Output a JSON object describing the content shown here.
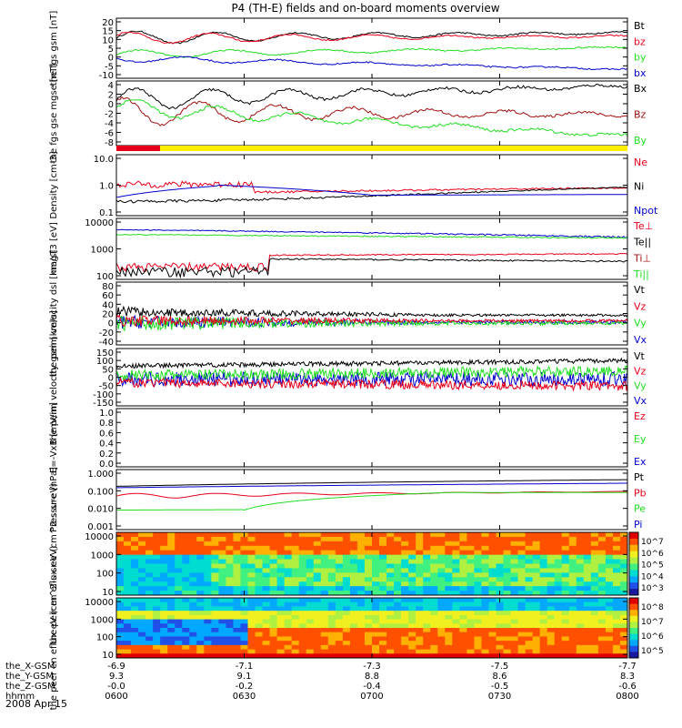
{
  "title": "P4 (TH-E) fields and on-board moments overview",
  "date_label": "2008 Apr 15",
  "colors": {
    "black": "#000000",
    "red": "#e8001a",
    "darkred": "#a01010",
    "green": "#22dd22",
    "blue": "#0000cc",
    "yellow": "#ffee00"
  },
  "chart_data": [
    {
      "type": "line",
      "panel": "fgs-gsm",
      "ylabel": "the fgs gsm [nT]",
      "yticks": [
        "20",
        "15",
        "10",
        "5",
        "0",
        "-5",
        "-10"
      ],
      "ylim": [
        -12,
        21
      ],
      "legend": [
        {
          "label": "Bt",
          "color": "black"
        },
        {
          "label": "bz",
          "color": "red"
        },
        {
          "label": "by",
          "color": "green"
        },
        {
          "label": "bx",
          "color": "blue"
        }
      ]
    },
    {
      "type": "line",
      "panel": "fgs-mgse",
      "ylabel": "the fgs gse mgse [nT]",
      "yticks": [
        "4",
        "2",
        "0",
        "-2",
        "-4",
        "-6",
        "-8"
      ],
      "ylim": [
        -9,
        4.5
      ],
      "legend": [
        {
          "label": "Bx",
          "color": "black"
        },
        {
          "label": "Bz",
          "color": "darkred"
        },
        {
          "label": "By",
          "color": "green"
        }
      ]
    },
    {
      "type": "line",
      "panel": "density",
      "ylabel": "Density [cm-3]",
      "yticks": [
        "10.0",
        "1.0",
        "0.1"
      ],
      "scale": "log",
      "legend": [
        {
          "label": "Ne",
          "color": "red"
        },
        {
          "label": "Ni",
          "color": "black"
        },
        {
          "label": "Npot",
          "color": "blue"
        }
      ]
    },
    {
      "type": "line",
      "panel": "temperature",
      "ylabel": "magT3 [eV]",
      "yticks": [
        "10000",
        "1000",
        "100"
      ],
      "scale": "log",
      "legend": [
        {
          "label": "Te⊥",
          "color": "red"
        },
        {
          "label": "Te||",
          "color": "black"
        },
        {
          "label": "Ti⊥",
          "color": "darkred"
        },
        {
          "label": "Ti||",
          "color": "green"
        }
      ]
    },
    {
      "type": "line",
      "panel": "peim-velocity-dsl",
      "ylabel": "the peim velocity dsl [km/s]",
      "yticks": [
        "80",
        "60",
        "40",
        "20",
        "0",
        "-20",
        "-40"
      ],
      "ylim": [
        -45,
        85
      ],
      "legend": [
        {
          "label": "Vt",
          "color": "black"
        },
        {
          "label": "Vz",
          "color": "red"
        },
        {
          "label": "Vy",
          "color": "green"
        },
        {
          "label": "Vx",
          "color": "blue"
        }
      ]
    },
    {
      "type": "line",
      "panel": "peim-velocity-gsm",
      "ylabel": "the peim velocity gsm [km/s]",
      "yticks": [
        "150",
        "100",
        "50",
        "0",
        "-50",
        "-100",
        "-150"
      ],
      "ylim": [
        -160,
        160
      ],
      "legend": [
        {
          "label": "Vt",
          "color": "black"
        },
        {
          "label": "Vz",
          "color": "red"
        },
        {
          "label": "Vy",
          "color": "green"
        },
        {
          "label": "Vx",
          "color": "blue"
        }
      ]
    },
    {
      "type": "line",
      "panel": "efield",
      "ylabel": "E=-VxB [mV/m]",
      "yticks": [
        "1.0",
        "0.8",
        "0.6",
        "0.4",
        "0.2",
        "0.0"
      ],
      "ylim": [
        0,
        1
      ],
      "legend": [
        {
          "label": "Ez",
          "color": "red"
        },
        {
          "label": "Ey",
          "color": "green"
        },
        {
          "label": "Ex",
          "color": "blue"
        }
      ]
    },
    {
      "type": "line",
      "panel": "pressure",
      "ylabel": "Pressure [nPa]",
      "yticks": [
        "1.000",
        "0.100",
        "0.010",
        "0.001"
      ],
      "scale": "log",
      "legend": [
        {
          "label": "Pt",
          "color": "black"
        },
        {
          "label": "Pb",
          "color": "red"
        },
        {
          "label": "Pe",
          "color": "green"
        },
        {
          "label": "Pi",
          "color": "blue"
        }
      ]
    },
    {
      "type": "heatmap",
      "panel": "peir-spectrogram",
      "ylabel": "the peir en eflux eV (cm^2-s-sr-eV)",
      "yticks": [
        "10000",
        "1000",
        "100",
        "10"
      ],
      "colorbar_ticks": [
        "10^7",
        "10^6",
        "10^5",
        "10^4",
        "10^3"
      ]
    },
    {
      "type": "heatmap",
      "panel": "peer-spectrogram",
      "ylabel": "the peer en eflux eV (cm^2-s-sr-eV)",
      "yticks": [
        "10000",
        "1000",
        "100",
        "10"
      ],
      "colorbar_ticks": [
        "10^8",
        "10^7",
        "10^6",
        "10^5"
      ]
    }
  ],
  "ephemeris": {
    "rows": [
      {
        "label": "the_X-GSM",
        "values": [
          "-6.9",
          "-7.1",
          "-7.3",
          "-7.5",
          "-7.7"
        ]
      },
      {
        "label": "the_Y-GSM",
        "values": [
          "9.3",
          "9.1",
          "8.8",
          "8.6",
          "8.3"
        ]
      },
      {
        "label": "the_Z-GSM",
        "values": [
          "-0.0",
          "-0.2",
          "-0.4",
          "-0.5",
          "-0.6"
        ]
      },
      {
        "label": "hhmm",
        "values": [
          "0600",
          "0630",
          "0700",
          "0730",
          "0800"
        ]
      }
    ]
  }
}
